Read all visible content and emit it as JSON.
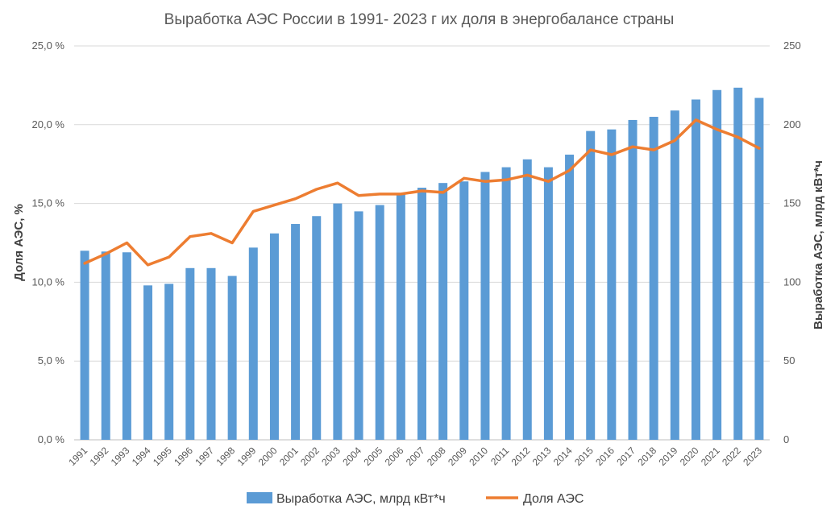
{
  "chart_data": {
    "type": "bar",
    "title": "Выработка АЭС России в 1991- 2023 г их доля в энергобалансе страны",
    "y_left_label": "Доля АЭС, %",
    "y_right_label": "Выработка АЭС, млрд кВт*ч",
    "y_left_ticks": [
      "0,0 %",
      "5,0 %",
      "10,0 %",
      "15,0 %",
      "20,0 %",
      "25,0 %"
    ],
    "y_right_ticks": [
      "0",
      "50",
      "100",
      "150",
      "200",
      "250"
    ],
    "y_left_lim": [
      0,
      25
    ],
    "y_right_lim": [
      0,
      250
    ],
    "grid": true,
    "legend_position": "bottom",
    "categories": [
      "1991",
      "1992",
      "1993",
      "1994",
      "1995",
      "1996",
      "1997",
      "1998",
      "1999",
      "2000",
      "2001",
      "2002",
      "2003",
      "2004",
      "2005",
      "2006",
      "2007",
      "2008",
      "2009",
      "2010",
      "2011",
      "2012",
      "2013",
      "2014",
      "2015",
      "2016",
      "2017",
      "2018",
      "2019",
      "2020",
      "2021",
      "2022",
      "2023"
    ],
    "series": [
      {
        "name": "Выработка АЭС, млрд кВт*ч",
        "type": "bar",
        "axis": "right",
        "color": "#5B9BD5",
        "values": [
          120,
          119.5,
          119,
          98,
          99,
          109,
          109,
          104,
          122,
          131,
          137,
          142,
          150,
          145,
          149,
          156,
          160,
          163,
          164,
          170,
          173,
          178,
          173,
          181,
          196,
          197,
          203,
          205,
          209,
          216,
          222,
          223.5,
          217
        ]
      },
      {
        "name": "Доля АЭС",
        "type": "line",
        "axis": "left",
        "color": "#ED7D31",
        "values": [
          11.2,
          11.8,
          12.5,
          11.1,
          11.6,
          12.9,
          13.1,
          12.5,
          14.5,
          14.9,
          15.3,
          15.9,
          16.3,
          15.5,
          15.6,
          15.6,
          15.8,
          15.7,
          16.6,
          16.4,
          16.5,
          16.8,
          16.4,
          17.1,
          18.4,
          18.1,
          18.6,
          18.4,
          19.0,
          20.3,
          19.7,
          19.2,
          18.5
        ]
      }
    ]
  }
}
